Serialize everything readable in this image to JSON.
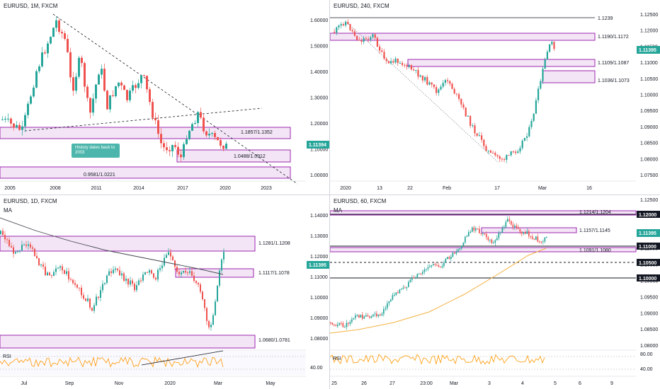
{
  "panels": {
    "p1": {
      "title": "EURUSD, 1M, FXCM",
      "y_ticks": [
        "1.60000",
        "1.50000",
        "1.40000",
        "1.30000",
        "1.20000",
        "1.10000",
        "1.00000"
      ],
      "x_ticks": [
        "2005",
        "2008",
        "2011",
        "2014",
        "2017",
        "2020",
        "2023"
      ],
      "price": "1.11394",
      "zones": [
        "1.1857/1.1352",
        "1.0488/1.0912",
        "0.9581/1.0221"
      ],
      "callout": "History dates back to 2003"
    },
    "p2": {
      "title": "EURUSD, 240, FXCM",
      "y_ticks": [
        "1.12500",
        "1.12000",
        "1.11500",
        "1.11000",
        "1.10500",
        "1.10000",
        "1.09500",
        "1.09000",
        "1.08500",
        "1.08000",
        "1.07500"
      ],
      "x_ticks": [
        "2020",
        "13",
        "22",
        "Feb",
        "17",
        "Mar",
        "16"
      ],
      "price": "1.11395",
      "zones": [
        "1.1239",
        "1.1190/1.1172",
        "1.1109/1.1087",
        "1.1036/1.1073"
      ]
    },
    "p3": {
      "title": "EURUSD, 1D, FXCM",
      "ma": "MA",
      "y_ticks": [
        "1.14000",
        "1.13000",
        "1.12000",
        "1.11000",
        "1.10000",
        "1.09000",
        "1.08000"
      ],
      "x_ticks": [
        "Jul",
        "Sep",
        "Nov",
        "2020",
        "Mar",
        "May"
      ],
      "price": "1.11395",
      "zones": [
        "1.1281/1.1208",
        "1.1117/1.1078",
        "1.0680/1.0781"
      ],
      "rsi_label": "RSI",
      "rsi_ticks": [
        "40.00"
      ]
    },
    "p4": {
      "title": "EURUSD, 60, FXCM",
      "ma": "MA",
      "y_ticks": [
        "1.12500",
        "1.12000",
        "1.11500",
        "1.11000",
        "1.10500",
        "1.10000",
        "1.09500",
        "1.09000",
        "1.08500",
        "1.08000"
      ],
      "x_ticks": [
        "25",
        "26",
        "27",
        "23:00",
        "Mar",
        "3",
        "4",
        "5",
        "6",
        "9"
      ],
      "price": "1.11395",
      "levels": [
        "1.12000",
        "1.11000",
        "1.10500",
        "1.10000"
      ],
      "zones": [
        "1.1214/1.1204",
        "1.1157/1.1145",
        "1.1091/1.1080"
      ],
      "rsi_label": "RSI",
      "rsi_ticks": [
        "80.00",
        "40.00"
      ]
    }
  },
  "colors": {
    "up": "#26a69a",
    "down": "#ef5350",
    "zone": "#9c27b0",
    "ma_dark": "#434651",
    "ma_orange": "#f5b041",
    "rsi": "#ff9800",
    "tag": "#26a69a",
    "level": "#131722"
  }
}
